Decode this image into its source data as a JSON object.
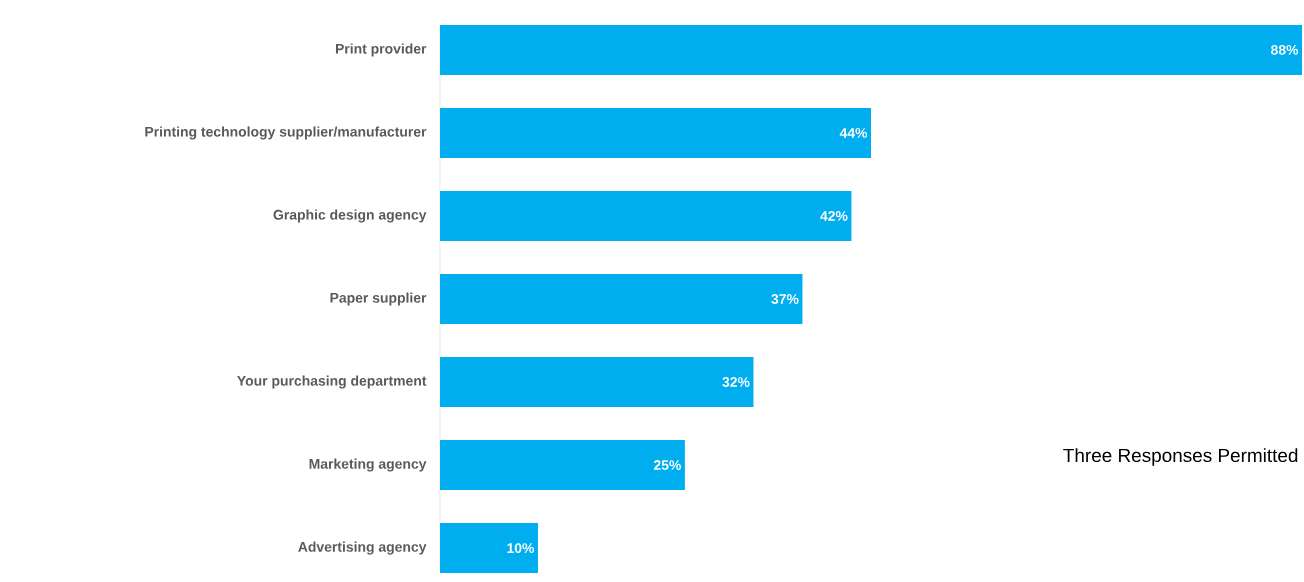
{
  "chart_data": {
    "type": "bar",
    "orientation": "horizontal",
    "categories": [
      "Print provider",
      "Printing technology supplier/manufacturer",
      "Graphic design agency",
      "Paper supplier",
      "Your purchasing department",
      "Marketing agency",
      "Advertising agency"
    ],
    "values": [
      88,
      44,
      42,
      37,
      32,
      25,
      10
    ],
    "value_labels": [
      "88%",
      "44%",
      "42%",
      "37%",
      "32%",
      "25%",
      "10%"
    ],
    "color": "#00aeef",
    "annotations": [
      "Three Responses Permitted"
    ]
  }
}
